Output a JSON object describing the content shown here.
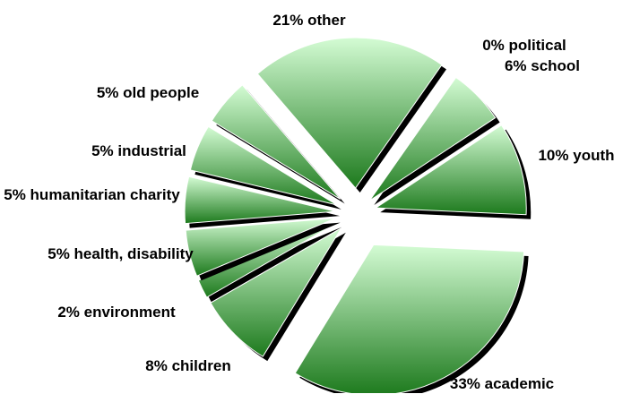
{
  "chart_data": {
    "type": "pie",
    "categories": [
      "political",
      "school",
      "youth",
      "academic",
      "children",
      "environment",
      "health, disability",
      "humanitarian charity",
      "industrial",
      "old people",
      "other"
    ],
    "values": [
      0,
      6,
      10,
      33,
      8,
      2,
      5,
      5,
      5,
      5,
      21
    ],
    "value_labels": [
      "0%",
      "6%",
      "10%",
      "33%",
      "8%",
      "2%",
      "5%",
      "5%",
      "5%",
      "5%",
      "21%"
    ],
    "colors": {
      "light": "#d4fcd4",
      "dark": "#1d7a1d"
    }
  }
}
